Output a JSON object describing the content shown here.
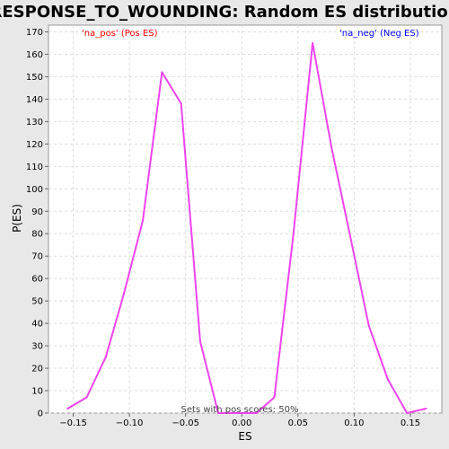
{
  "chart_data": {
    "type": "line",
    "title": "RESPONSE_TO_WOUNDING: Random ES distribution",
    "xlabel": "ES",
    "ylabel": "P(ES)",
    "xlim": [
      -0.172,
      0.178
    ],
    "ylim": [
      0,
      173
    ],
    "x_ticks": [
      -0.15,
      -0.1,
      -0.05,
      0.0,
      0.05,
      0.1,
      0.15
    ],
    "x_tick_labels": [
      "−0.15",
      "−0.10",
      "−0.05",
      "0.00",
      "0.05",
      "0.10",
      "0.15"
    ],
    "y_ticks": [
      0,
      10,
      20,
      30,
      40,
      50,
      60,
      70,
      80,
      90,
      100,
      110,
      120,
      130,
      140,
      150,
      160,
      170
    ],
    "grid": true,
    "legend": [
      {
        "label": "'na_pos' (Pos ES)",
        "color": "#ff0000"
      },
      {
        "label": "'na_neg' (Neg ES)",
        "color": "#0000ff"
      }
    ],
    "annotation": "Sets with pos scores: 50%",
    "series": [
      {
        "color": "#ee44ee",
        "x": [
          -0.155,
          -0.138,
          -0.121,
          -0.105,
          -0.088,
          -0.071,
          -0.054,
          -0.037,
          -0.021,
          -0.004,
          0.013,
          0.029,
          0.046,
          0.063,
          0.08,
          0.096,
          0.113,
          0.13,
          0.147,
          0.164
        ],
        "y": [
          2,
          7,
          25,
          53,
          86,
          152,
          138,
          32,
          0,
          0,
          0,
          7,
          80,
          165,
          118,
          80,
          39,
          15,
          0,
          2
        ]
      }
    ]
  }
}
